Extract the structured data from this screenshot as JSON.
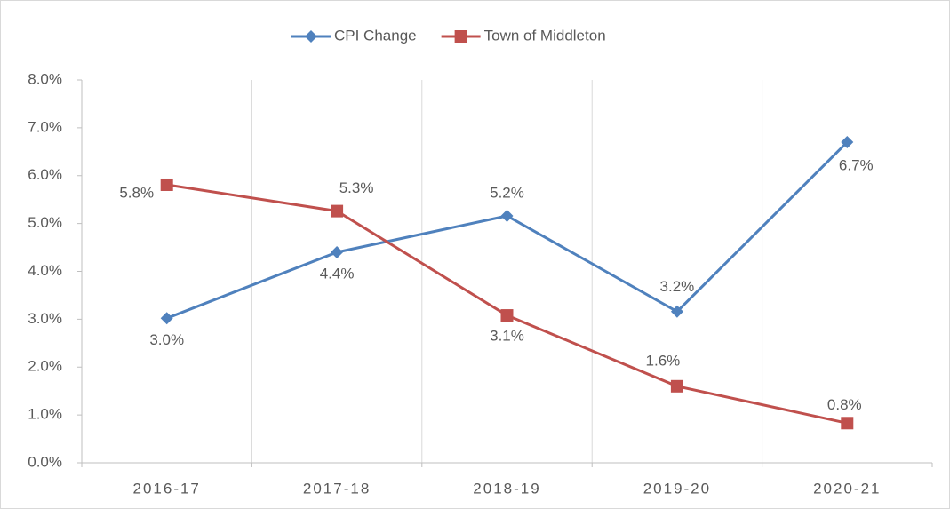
{
  "chart_data": {
    "type": "line",
    "categories": [
      "2016-17",
      "2017-18",
      "2018-19",
      "2019-20",
      "2020-21"
    ],
    "series": [
      {
        "name": "CPI Change",
        "color": "#4f81bd",
        "marker": "diamond",
        "values": [
          3.02,
          4.4,
          5.16,
          3.16,
          6.7
        ],
        "value_labels": [
          "3.0%",
          "4.4%",
          "5.2%",
          "3.2%",
          "6.7%"
        ]
      },
      {
        "name": "Town of Middleton",
        "color": "#c0504d",
        "marker": "square",
        "values": [
          5.81,
          5.26,
          3.08,
          1.6,
          0.83
        ],
        "value_labels": [
          "5.8%",
          "5.3%",
          "3.1%",
          "1.6%",
          "0.8%"
        ]
      }
    ],
    "ylim": [
      0,
      8
    ],
    "yticks": [
      {
        "value": 0,
        "label": "0.0%"
      },
      {
        "value": 1,
        "label": "1.0%"
      },
      {
        "value": 2,
        "label": "2.0%"
      },
      {
        "value": 3,
        "label": "3.0%"
      },
      {
        "value": 4,
        "label": "4.0%"
      },
      {
        "value": 5,
        "label": "5.0%"
      },
      {
        "value": 6,
        "label": "6.0%"
      },
      {
        "value": 7,
        "label": "7.0%"
      },
      {
        "value": 8,
        "label": "8.0%"
      }
    ],
    "grid": "vertical",
    "legend": "top"
  }
}
